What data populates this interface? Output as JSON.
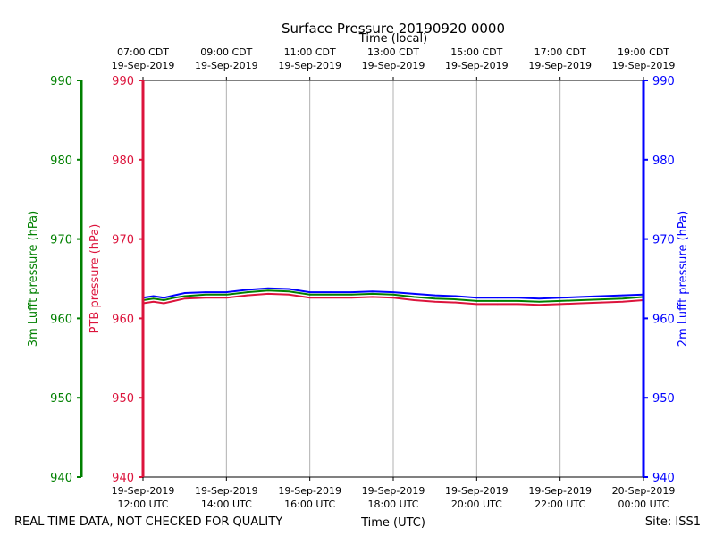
{
  "chart_data": {
    "type": "line",
    "title": "Surface Pressure 20190920 0000",
    "top_xlabel": "Time (local)",
    "xlabel": "Time (UTC)",
    "footer_left": "REAL TIME DATA, NOT CHECKED FOR QUALITY",
    "footer_right": "Site: ISS1",
    "xlim_utc_hours": [
      12,
      24
    ],
    "grid": "vertical",
    "bottom_ticks": [
      {
        "line1": "19-Sep-2019",
        "line2": "12:00 UTC",
        "t": 12
      },
      {
        "line1": "19-Sep-2019",
        "line2": "14:00 UTC",
        "t": 14
      },
      {
        "line1": "19-Sep-2019",
        "line2": "16:00 UTC",
        "t": 16
      },
      {
        "line1": "19-Sep-2019",
        "line2": "18:00 UTC",
        "t": 18
      },
      {
        "line1": "19-Sep-2019",
        "line2": "20:00 UTC",
        "t": 20
      },
      {
        "line1": "19-Sep-2019",
        "line2": "22:00 UTC",
        "t": 22
      },
      {
        "line1": "20-Sep-2019",
        "line2": "00:00 UTC",
        "t": 24
      }
    ],
    "top_ticks": [
      {
        "line1": "07:00 CDT",
        "line2": "19-Sep-2019",
        "t": 12
      },
      {
        "line1": "09:00 CDT",
        "line2": "19-Sep-2019",
        "t": 14
      },
      {
        "line1": "11:00 CDT",
        "line2": "19-Sep-2019",
        "t": 16
      },
      {
        "line1": "13:00 CDT",
        "line2": "19-Sep-2019",
        "t": 18
      },
      {
        "line1": "15:00 CDT",
        "line2": "19-Sep-2019",
        "t": 20
      },
      {
        "line1": "17:00 CDT",
        "line2": "19-Sep-2019",
        "t": 22
      },
      {
        "line1": "19:00 CDT",
        "line2": "19-Sep-2019",
        "t": 24
      }
    ],
    "axes": [
      {
        "id": "lufft3m",
        "label": "3m Lufft pressure (hPa)",
        "color": "#008000",
        "ylim": [
          940,
          990
        ],
        "ticks": [
          940,
          950,
          960,
          970,
          980,
          990
        ]
      },
      {
        "id": "ptb",
        "label": "PTB pressure (hPa)",
        "color": "#dc143c",
        "ylim": [
          940,
          990
        ],
        "ticks": [
          940,
          950,
          960,
          970,
          980,
          990
        ]
      },
      {
        "id": "lufft2m",
        "label": "2m Lufft pressure (hPa)",
        "color": "#0000ff",
        "ylim": [
          940,
          990
        ],
        "ticks": [
          940,
          950,
          960,
          970,
          980,
          990
        ]
      }
    ],
    "series": [
      {
        "axis": "ptb",
        "color": "#dc143c",
        "x": [
          12,
          12.25,
          12.5,
          12.75,
          13,
          13.5,
          14,
          14.5,
          15,
          15.5,
          16,
          16.5,
          17,
          17.5,
          18,
          18.5,
          19,
          19.5,
          20,
          20.5,
          21,
          21.5,
          22,
          22.5,
          23,
          23.5,
          24
        ],
        "y": [
          961.9,
          962.1,
          961.9,
          962.2,
          962.5,
          962.6,
          962.6,
          962.9,
          963.1,
          963.0,
          962.6,
          962.6,
          962.6,
          962.7,
          962.6,
          962.3,
          962.1,
          962.0,
          961.8,
          961.8,
          961.8,
          961.7,
          961.8,
          961.9,
          962.0,
          962.1,
          962.3
        ]
      },
      {
        "axis": "lufft3m",
        "color": "#008000",
        "x": [
          12,
          12.25,
          12.5,
          12.75,
          13,
          13.5,
          14,
          14.5,
          15,
          15.5,
          16,
          16.5,
          17,
          17.5,
          18,
          18.5,
          19,
          19.5,
          20,
          20.5,
          21,
          21.5,
          22,
          22.5,
          23,
          23.5,
          24
        ],
        "y": [
          962.3,
          962.5,
          962.3,
          962.6,
          962.8,
          963.0,
          963.0,
          963.3,
          963.5,
          963.4,
          963.0,
          963.0,
          963.0,
          963.1,
          963.0,
          962.7,
          962.5,
          962.4,
          962.2,
          962.2,
          962.2,
          962.1,
          962.2,
          962.3,
          962.4,
          962.5,
          962.7
        ]
      },
      {
        "axis": "lufft2m",
        "color": "#0000ff",
        "x": [
          12,
          12.25,
          12.5,
          12.75,
          13,
          13.5,
          14,
          14.5,
          15,
          15.5,
          16,
          16.5,
          17,
          17.5,
          18,
          18.5,
          19,
          19.5,
          20,
          20.5,
          21,
          21.5,
          22,
          22.5,
          23,
          23.5,
          24
        ],
        "y": [
          962.6,
          962.8,
          962.6,
          962.9,
          963.2,
          963.3,
          963.3,
          963.6,
          963.8,
          963.7,
          963.3,
          963.3,
          963.3,
          963.4,
          963.3,
          963.1,
          962.9,
          962.8,
          962.6,
          962.6,
          962.6,
          962.5,
          962.6,
          962.7,
          962.8,
          962.9,
          963.0
        ]
      }
    ]
  }
}
